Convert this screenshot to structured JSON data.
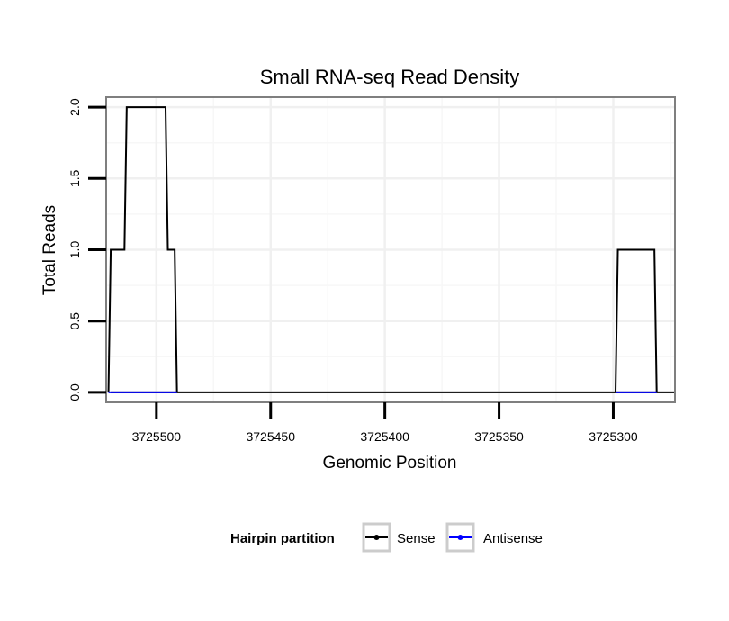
{
  "chart_data": {
    "type": "line",
    "title": "Small RNA-seq Read Density",
    "xlabel": "Genomic Position",
    "ylabel": "Total Reads",
    "x_reversed": true,
    "xlim": [
      3725273,
      3725522
    ],
    "ylim": [
      -0.07,
      2.07
    ],
    "x_ticks": [
      3725500,
      3725450,
      3725400,
      3725350,
      3725300
    ],
    "x_tick_labels": [
      "3725500",
      "3725450",
      "3725400",
      "3725350",
      "3725300"
    ],
    "y_ticks": [
      0,
      0.5,
      1,
      1.5,
      2
    ],
    "y_tick_labels": [
      "0.0",
      "0.5",
      "1.0",
      "1.5",
      "2.0"
    ],
    "grid": true,
    "legend": {
      "title": "Hairpin partition",
      "position": "bottom",
      "entries": [
        {
          "label": "Sense",
          "color": "#000000"
        },
        {
          "label": "Antisense",
          "color": "#0000ff"
        }
      ]
    },
    "series": [
      {
        "name": "Sense",
        "color": "#000000",
        "x": [
          3725521,
          3725520,
          3725514,
          3725513,
          3725496,
          3725495,
          3725492,
          3725491,
          3725273,
          3725281,
          3725282,
          3725298,
          3725299,
          3725500,
          3725520
        ],
        "y": [
          0,
          1,
          1,
          2,
          2,
          1,
          1,
          0,
          0,
          0,
          1,
          1,
          0,
          0,
          0
        ]
      },
      {
        "name": "Antisense",
        "color": "#0000ff",
        "segments": [
          {
            "x": [
              3725521,
              3725491
            ],
            "y": [
              0,
              0
            ]
          },
          {
            "x": [
              3725299,
              3725281
            ],
            "y": [
              0,
              0
            ]
          }
        ]
      }
    ]
  }
}
